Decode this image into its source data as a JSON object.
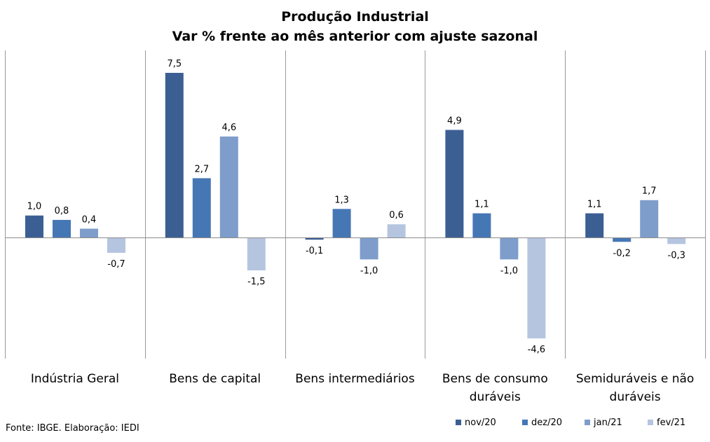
{
  "chart_data": {
    "type": "bar",
    "title": "Produção Industrial",
    "subtitle": "Var % frente ao mês anterior com ajuste sazonal",
    "categories": [
      "Indústria Geral",
      "Bens de capital",
      "Bens intermediários",
      "Bens de consumo duráveis",
      "Semiduráveis e não duráveis"
    ],
    "series": [
      {
        "name": "nov/20",
        "color": "#3c5f93",
        "values": [
          1.0,
          7.5,
          -0.1,
          4.9,
          1.1
        ],
        "labels": [
          "1,0",
          "7,5",
          "-0,1",
          "4,9",
          "1,1"
        ]
      },
      {
        "name": "dez/20",
        "color": "#4677b5",
        "values": [
          0.8,
          2.7,
          1.3,
          1.1,
          -0.2
        ],
        "labels": [
          "0,8",
          "2,7",
          "1,3",
          "1,1",
          "-0,2"
        ]
      },
      {
        "name": "jan/21",
        "color": "#7e9dcb",
        "values": [
          0.4,
          4.6,
          -1.0,
          -1.0,
          1.7
        ],
        "labels": [
          "0,4",
          "4,6",
          "-1,0",
          "-1,0",
          "1,7"
        ]
      },
      {
        "name": "fev/21",
        "color": "#b5c5e0",
        "values": [
          -0.7,
          -1.5,
          0.6,
          -4.6,
          -0.3
        ],
        "labels": [
          "-0,7",
          "-1,5",
          "0,6",
          "-4,6",
          "-0,3"
        ]
      }
    ],
    "grid": false,
    "legend_position": "bottom-right"
  },
  "source": "Fonte: IBGE. Elaboração: IEDI"
}
